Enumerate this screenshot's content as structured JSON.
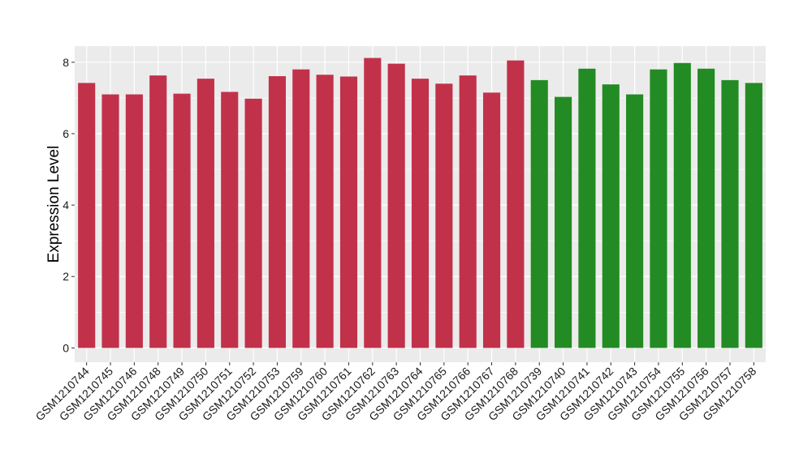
{
  "chart_data": {
    "type": "bar",
    "title": "",
    "xlabel": "",
    "ylabel": "Expression Level",
    "ylim": [
      -0.4,
      8.45
    ],
    "yticks": [
      0,
      2,
      4,
      6,
      8
    ],
    "grid": true,
    "background": "#ebebeb",
    "categories": [
      "GSM1210744",
      "GSM1210745",
      "GSM1210746",
      "GSM1210748",
      "GSM1210749",
      "GSM1210750",
      "GSM1210751",
      "GSM1210752",
      "GSM1210753",
      "GSM1210759",
      "GSM1210760",
      "GSM1210761",
      "GSM1210762",
      "GSM1210763",
      "GSM1210764",
      "GSM1210765",
      "GSM1210766",
      "GSM1210767",
      "GSM1210768",
      "GSM1210739",
      "GSM1210740",
      "GSM1210741",
      "GSM1210742",
      "GSM1210743",
      "GSM1210754",
      "GSM1210755",
      "GSM1210756",
      "GSM1210757",
      "GSM1210758"
    ],
    "values": [
      7.42,
      7.1,
      7.1,
      7.63,
      7.12,
      7.54,
      7.17,
      6.98,
      7.61,
      7.8,
      7.65,
      7.6,
      8.12,
      7.96,
      7.54,
      7.4,
      7.63,
      7.15,
      8.05,
      7.5,
      7.03,
      7.82,
      7.38,
      7.1,
      7.8,
      7.98,
      7.82,
      7.5,
      7.42
    ],
    "groups": [
      "red",
      "red",
      "red",
      "red",
      "red",
      "red",
      "red",
      "red",
      "red",
      "red",
      "red",
      "red",
      "red",
      "red",
      "red",
      "red",
      "red",
      "red",
      "red",
      "green",
      "green",
      "green",
      "green",
      "green",
      "green",
      "green",
      "green",
      "green",
      "green"
    ],
    "colors": {
      "red": "#c2314a",
      "green": "#238b23"
    }
  }
}
